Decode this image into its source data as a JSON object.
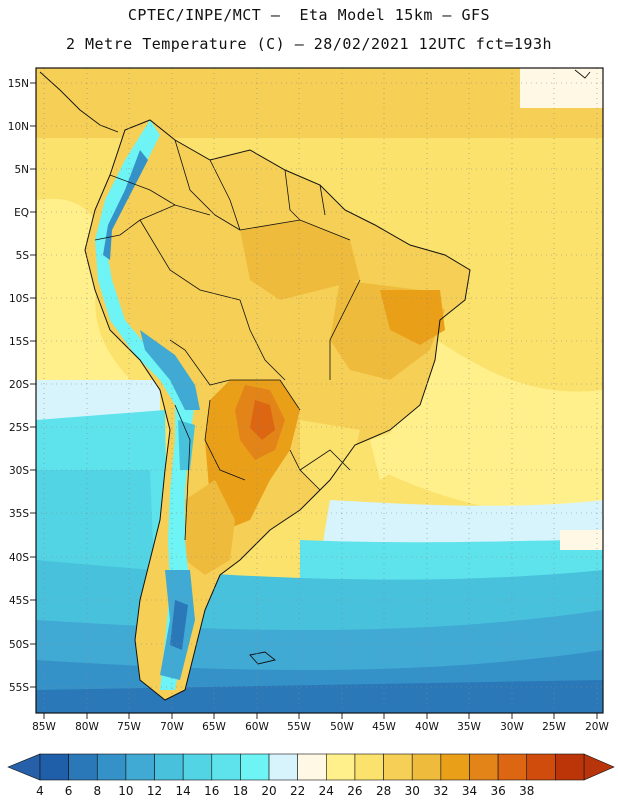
{
  "header": {
    "line1": "CPTEC/INPE/MCT –  Eta Model 15km – GFS",
    "line2": "2 Metre Temperature (C) – 28/02/2021 12UTC fct=193h"
  },
  "map": {
    "region": "South America",
    "lon_labels": [
      "85W",
      "80W",
      "75W",
      "70W",
      "65W",
      "60W",
      "55W",
      "50W",
      "45W",
      "40W",
      "35W",
      "30W",
      "25W",
      "20W"
    ],
    "lat_labels": [
      "15N",
      "10N",
      "5N",
      "EQ",
      "5S",
      "10S",
      "15S",
      "20S",
      "25S",
      "30S",
      "35S",
      "40S",
      "45S",
      "50S",
      "55S"
    ]
  },
  "colorbar": {
    "levels": [
      "4",
      "6",
      "8",
      "10",
      "12",
      "14",
      "16",
      "18",
      "20",
      "22",
      "24",
      "26",
      "28",
      "30",
      "32",
      "34",
      "36",
      "38"
    ],
    "colors": [
      "#1f5ea8",
      "#2a78b8",
      "#3592c8",
      "#40aad4",
      "#48c2dc",
      "#52d4e4",
      "#5ee3ec",
      "#6ef4f4",
      "#d7f4fc",
      "#fff8e4",
      "#fff08c",
      "#fbe26c",
      "#f6cf56",
      "#efbb3c",
      "#ea9f18",
      "#e38419",
      "#dc6612",
      "#cf4c0c",
      "#bc3509"
    ],
    "left_color": "#2660a8",
    "right_color": "#b8340a"
  }
}
